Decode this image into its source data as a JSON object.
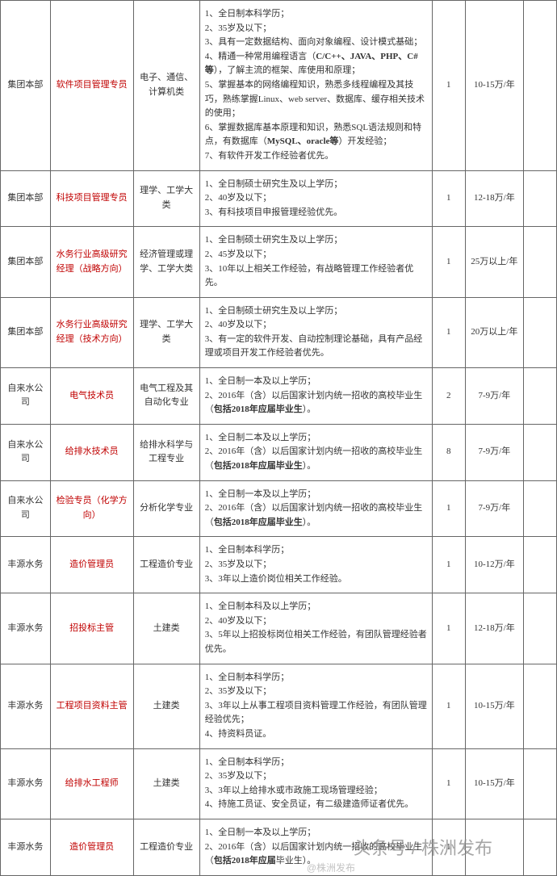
{
  "table": {
    "rows": [
      {
        "dept": "集团本部",
        "position": "软件项目管理专员",
        "major": "电子、通信、计算机类",
        "requirements": [
          "1、全日制本科学历；",
          "2、35岁及以下；",
          "3、具有一定数据结构、面向对象编程、设计模式基础；",
          "4、精通一种常用编程语言（C/C++、JAVA、PHP、C#等），了解主流的框架、库使用和原理；",
          "5、掌握基本的网络编程知识，熟悉多线程编程及其技巧，熟练掌握Linux、web server、数据库、缓存相关技术的使用；",
          "6、掌握数据库基本原理和知识，熟悉SQL语法规则和特点，有数据库（MySQL、oracle等）开发经验；",
          "7、有软件开发工作经验者优先。"
        ],
        "bold_parts": [
          "C/C++、JAVA、PHP、C#等",
          "MySQL、oracle等"
        ],
        "num": "1",
        "salary": "10-15万/年"
      },
      {
        "dept": "集团本部",
        "position": "科技项目管理专员",
        "major": "理学、工学大类",
        "requirements": [
          "1、全日制硕士研究生及以上学历；",
          "2、40岁及以下；",
          "3、有科技项目申报管理经验优先。"
        ],
        "num": "1",
        "salary": "12-18万/年"
      },
      {
        "dept": "集团本部",
        "position": "水务行业高级研究经理（战略方向）",
        "major": "经济管理或理学、工学大类",
        "requirements": [
          "1、全日制硕士研究生及以上学历；",
          "2、45岁及以下；",
          "3、10年以上相关工作经验，有战略管理工作经验者优先。"
        ],
        "num": "1",
        "salary": "25万以上/年"
      },
      {
        "dept": "集团本部",
        "position": "水务行业高级研究经理（技术方向）",
        "major": "理学、工学大类",
        "requirements": [
          "1、全日制硕士研究生及以上学历；",
          "2、40岁及以下；",
          "3、有一定的软件开发、自动控制理论基础，具有产品经理或项目开发工作经验者优先。"
        ],
        "num": "1",
        "salary": "20万以上/年"
      },
      {
        "dept": "自来水公司",
        "position": "电气技术员",
        "major": "电气工程及其自动化专业",
        "requirements": [
          "1、全日制一本及以上学历；",
          "2、2016年（含）以后国家计划内统一招收的高校毕业生（包括2018年应届毕业生）。"
        ],
        "bold_parts": [
          "包括2018年应届毕业生"
        ],
        "num": "2",
        "salary": "7-9万/年"
      },
      {
        "dept": "自来水公司",
        "position": "给排水技术员",
        "major": "给排水科学与工程专业",
        "requirements": [
          "1、全日制二本及以上学历；",
          "2、2016年（含）以后国家计划内统一招收的高校毕业生（包括2018年应届毕业生）。"
        ],
        "bold_parts": [
          "包括2018年应届毕业生"
        ],
        "num": "8",
        "salary": "7-9万/年"
      },
      {
        "dept": "自来水公司",
        "position": "检验专员（化学方向）",
        "major": "分析化学专业",
        "requirements": [
          "1、全日制一本及以上学历；",
          "2、2016年（含）以后国家计划内统一招收的高校毕业生（包括2018年应届毕业生）。"
        ],
        "bold_parts": [
          "包括2018年应届毕业生"
        ],
        "num": "1",
        "salary": "7-9万/年"
      },
      {
        "dept": "丰源水务",
        "position": "造价管理员",
        "major": "工程造价专业",
        "requirements": [
          "1、全日制本科学历；",
          "2、35岁及以下；",
          "3、3年以上造价岗位相关工作经验。"
        ],
        "num": "1",
        "salary": "10-12万/年"
      },
      {
        "dept": "丰源水务",
        "position": "招投标主管",
        "major": "土建类",
        "requirements": [
          "1、全日制本科及以上学历；",
          "2、40岁及以下；",
          "3、5年以上招投标岗位相关工作经验，有团队管理经验者优先。"
        ],
        "num": "1",
        "salary": "12-18万/年"
      },
      {
        "dept": "丰源水务",
        "position": "工程项目资料主管",
        "major": "土建类",
        "requirements": [
          "1、全日制本科学历；",
          "2、35岁及以下；",
          "3、3年以上从事工程项目资料管理工作经验，有团队管理经验优先；",
          "4、持资料员证。"
        ],
        "num": "1",
        "salary": "10-15万/年"
      },
      {
        "dept": "丰源水务",
        "position": "给排水工程师",
        "major": "土建类",
        "requirements": [
          "1、全日制本科学历；",
          "2、35岁及以下；",
          "3、3年以上给排水或市政施工现场管理经验；",
          "4、持施工员证、安全员证，有二级建造师证者优先。"
        ],
        "num": "1",
        "salary": "10-15万/年"
      },
      {
        "dept": "丰源水务",
        "position": "造价管理员",
        "major": "工程造价专业",
        "requirements": [
          "1、全日制一本及以上学历；",
          "2、2016年（含）以后国家计划内统一招收的高校毕业生（包括2018年应届毕业生）。"
        ],
        "bold_parts": [
          "包括2018年应届"
        ],
        "num": "1",
        "salary": ""
      }
    ]
  },
  "watermark": {
    "main": "头条号 / 株洲发布",
    "sub": "@株洲发布"
  },
  "colors": {
    "position_text": "#c00000",
    "border": "#666666",
    "text": "#333333",
    "background": "#ffffff"
  }
}
